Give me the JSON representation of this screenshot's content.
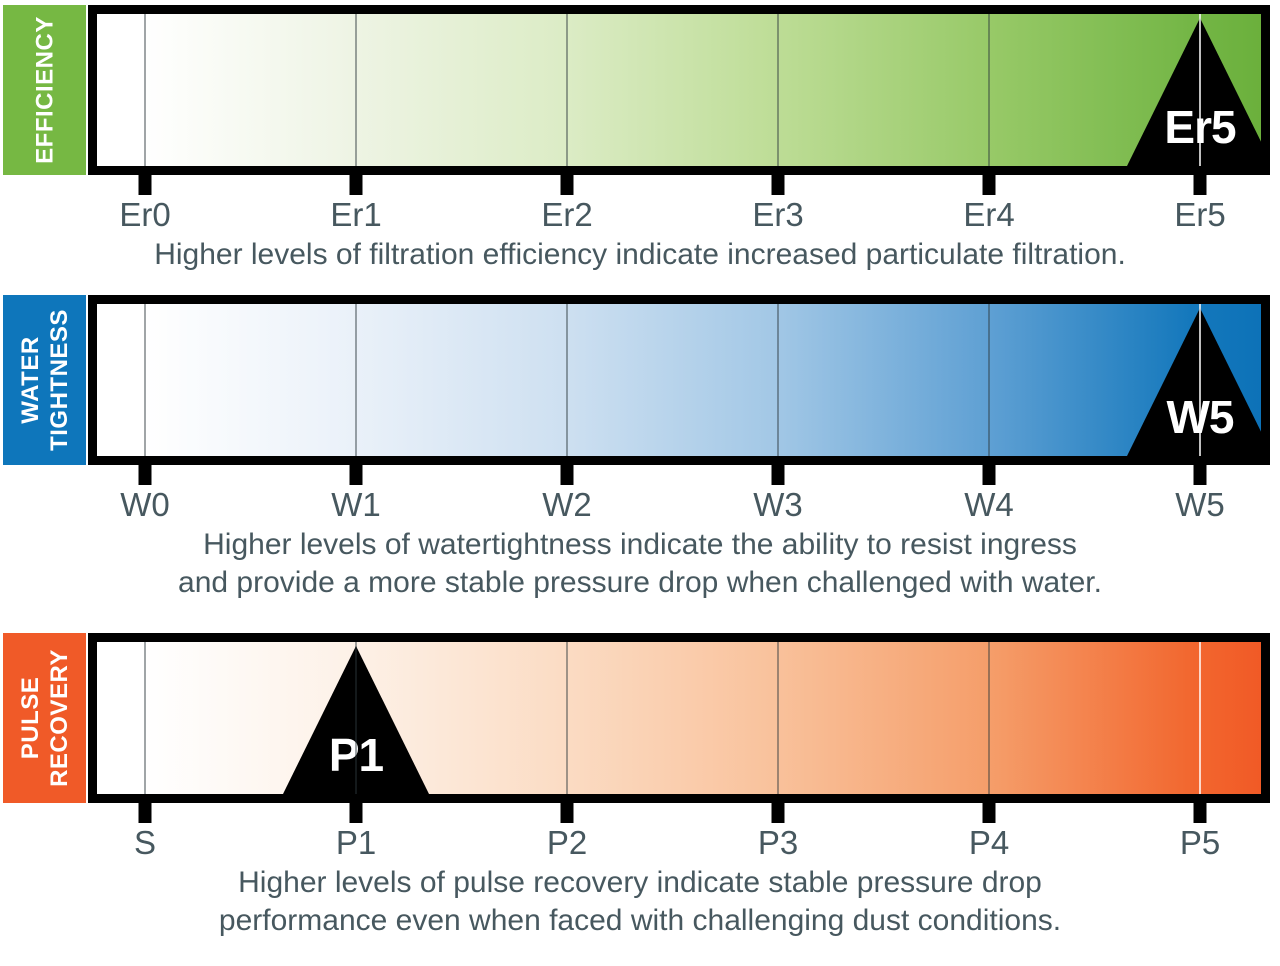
{
  "colors": {
    "background": "#ffffff",
    "text": "#47585f",
    "border": "#000000",
    "marker_bg": "#000000",
    "marker_text": "#ffffff",
    "efficiency_accent": "#76b843",
    "water_accent": "#0e76bb",
    "pulse_accent": "#f05a28"
  },
  "sections": [
    {
      "id": "efficiency",
      "side_label_lines": [
        "EFFICIENCY"
      ],
      "ticks": [
        "Er0",
        "Er1",
        "Er2",
        "Er3",
        "Er4",
        "Er5"
      ],
      "marker": {
        "label": "Er5",
        "tick_index": 5
      },
      "caption_lines": [
        "Higher levels of filtration efficiency indicate increased particulate filtration."
      ]
    },
    {
      "id": "water-tightness",
      "side_label_lines": [
        "WATER",
        "TIGHTNESS"
      ],
      "ticks": [
        "W0",
        "W1",
        "W2",
        "W3",
        "W4",
        "W5"
      ],
      "marker": {
        "label": "W5",
        "tick_index": 5
      },
      "caption_lines": [
        "Higher levels of watertightness indicate the ability to resist ingress",
        "and provide a more stable pressure drop when challenged with water."
      ]
    },
    {
      "id": "pulse-recovery",
      "side_label_lines": [
        "PULSE",
        "RECOVERY"
      ],
      "ticks": [
        "S",
        "P1",
        "P2",
        "P3",
        "P4",
        "P5"
      ],
      "marker": {
        "label": "P1",
        "tick_index": 1
      },
      "caption_lines": [
        "Higher levels of pulse recovery indicate stable pressure drop",
        "performance even when faced with challenging dust conditions."
      ]
    }
  ]
}
